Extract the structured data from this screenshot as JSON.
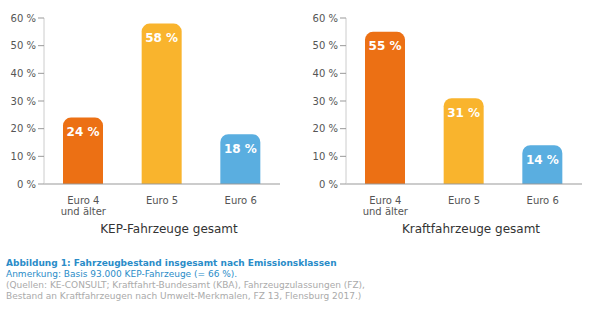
{
  "chart_data": [
    {
      "type": "bar",
      "title": "KEP-Fahrzeuge gesamt",
      "categories": [
        "Euro 4\nund älter",
        "Euro 5",
        "Euro 6"
      ],
      "values": [
        24,
        58,
        18
      ],
      "value_labels": [
        "24 %",
        "58 %",
        "18 %"
      ],
      "colors": [
        "#ec7014",
        "#f9b42d",
        "#5aaee0"
      ],
      "ylim": [
        0,
        60
      ],
      "yticks": [
        {
          "value": 0,
          "label": "0 %"
        },
        {
          "value": 10,
          "label": "10 %"
        },
        {
          "value": 20,
          "label": "20 %"
        },
        {
          "value": 30,
          "label": "30 %"
        },
        {
          "value": 40,
          "label": "40 %"
        },
        {
          "value": 50,
          "label": "50 %"
        },
        {
          "value": 60,
          "label": "60 %"
        }
      ],
      "grid": false,
      "data_labels": true
    },
    {
      "type": "bar",
      "title": "Kraftfahrzeuge gesamt",
      "categories": [
        "Euro 4\nund älter",
        "Euro 5",
        "Euro 6"
      ],
      "values": [
        55,
        31,
        14
      ],
      "value_labels": [
        "55 %",
        "31 %",
        "14 %"
      ],
      "colors": [
        "#ec7014",
        "#f9b42d",
        "#5aaee0"
      ],
      "ylim": [
        0,
        60
      ],
      "yticks": [
        {
          "value": 0,
          "label": "0 %"
        },
        {
          "value": 10,
          "label": "10 %"
        },
        {
          "value": 20,
          "label": "20 %"
        },
        {
          "value": 30,
          "label": "30 %"
        },
        {
          "value": 40,
          "label": "40 %"
        },
        {
          "value": 50,
          "label": "50 %"
        },
        {
          "value": 60,
          "label": "60 %"
        }
      ],
      "grid": false,
      "data_labels": true
    }
  ],
  "caption": {
    "title": "Abbildung 1: Fahrzeugbestand insgesamt nach Emissionsklassen",
    "note": "Anmerkung: Basis 93.000 KEP-Fahrzeuge (= 66 %).",
    "sources": [
      "(Quellen: KE-CONSULT; Kraftfahrt-Bundesamt (KBA), Fahrzeugzulassungen (FZ),",
      "Bestand an Kraftfahrzeugen nach Umwelt-Merkmalen, FZ 13, Flensburg 2017.)"
    ]
  }
}
